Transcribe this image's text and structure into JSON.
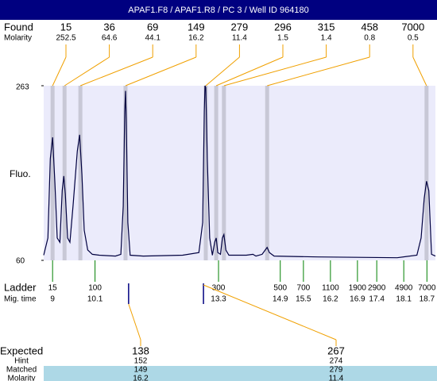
{
  "header": {
    "title": "APAF1.F8 / APAF1.R8 / PC 3 / Well ID 964180"
  },
  "chart_data": {
    "type": "electropherogram",
    "y_label": "Fluo.",
    "ylim": [
      60,
      263
    ],
    "yticks": [
      60,
      263
    ],
    "xlim": [
      8.77,
      18.92
    ],
    "found_label": "Found",
    "molarity_label": "Molarity",
    "found": [
      {
        "size": 15,
        "molarity": 252.5,
        "time": 9.0
      },
      {
        "size": 36,
        "molarity": 64.6,
        "time": 9.31
      },
      {
        "size": 69,
        "molarity": 44.1,
        "time": 9.72
      },
      {
        "size": 149,
        "molarity": 16.2,
        "time": 10.89
      },
      {
        "size": 279,
        "molarity": 11.4,
        "time": 12.97
      },
      {
        "size": 296,
        "molarity": 1.5,
        "time": 13.24
      },
      {
        "size": 315,
        "molarity": 1.4,
        "time": 13.44
      },
      {
        "size": 458,
        "molarity": 0.8,
        "time": 14.56
      },
      {
        "size": 7000,
        "molarity": 0.5,
        "time": 18.69
      }
    ],
    "ladder_label": "Ladder",
    "time_label": "Mig. time",
    "ladder": [
      {
        "size": 15,
        "time": 9
      },
      {
        "size": 100,
        "time": 10.1
      },
      {
        "size": 300,
        "time": 13.3
      },
      {
        "size": 500,
        "time": 14.9
      },
      {
        "size": 700,
        "time": 15.5
      },
      {
        "size": 1100,
        "time": 16.2
      },
      {
        "size": 1900,
        "time": 16.9
      },
      {
        "size": 2900,
        "time": 17.4
      },
      {
        "size": 4900,
        "time": 18.1
      },
      {
        "size": 7000,
        "time": 18.7
      }
    ],
    "trace": {
      "time": [
        8.77,
        8.88,
        8.94,
        9.0,
        9.06,
        9.12,
        9.19,
        9.25,
        9.29,
        9.33,
        9.39,
        9.45,
        9.53,
        9.64,
        9.7,
        9.76,
        9.82,
        9.91,
        10.03,
        10.21,
        10.63,
        10.77,
        10.83,
        10.87,
        10.89,
        10.91,
        10.95,
        11.01,
        11.35,
        12.37,
        12.79,
        12.89,
        12.93,
        12.95,
        12.97,
        13.01,
        13.07,
        13.14,
        13.2,
        13.24,
        13.28,
        13.35,
        13.4,
        13.44,
        13.49,
        13.57,
        14.02,
        14.19,
        14.27,
        14.43,
        14.51,
        14.56,
        14.62,
        14.74,
        15.87,
        17.93,
        18.44,
        18.55,
        18.63,
        18.69,
        18.75,
        18.82,
        18.92
      ],
      "fluo": [
        66,
        86,
        178,
        203,
        150,
        86,
        81,
        141,
        158,
        137,
        86,
        81,
        123,
        187,
        206,
        160,
        95,
        72,
        67,
        66,
        65,
        67,
        123,
        233,
        257,
        224,
        104,
        66,
        65,
        66,
        69,
        104,
        233,
        263,
        261,
        178,
        86,
        66,
        81,
        86,
        69,
        67,
        86,
        90,
        72,
        66,
        66,
        67,
        65,
        67,
        72,
        75,
        69,
        65,
        64,
        63,
        66,
        86,
        132,
        152,
        141,
        67,
        65
      ]
    },
    "expected_label": "Expected",
    "hint_label": "Hint",
    "matched_label": "Matched",
    "expected_molarity_label": "Molarity",
    "expected": [
      {
        "size": 138,
        "hint": 152,
        "matched": 149,
        "molarity": 16.2,
        "time": 10.97
      },
      {
        "size": 267,
        "hint": 274,
        "matched": 279,
        "molarity": 11.4,
        "time": 12.91
      }
    ],
    "colors": {
      "header": "#000080",
      "plot": "#ebebfb",
      "band": "#c8c8d6",
      "trace": "#000040",
      "connector": "#f0a000",
      "ladder": "#008000",
      "matched_row": "#add8e6"
    }
  }
}
